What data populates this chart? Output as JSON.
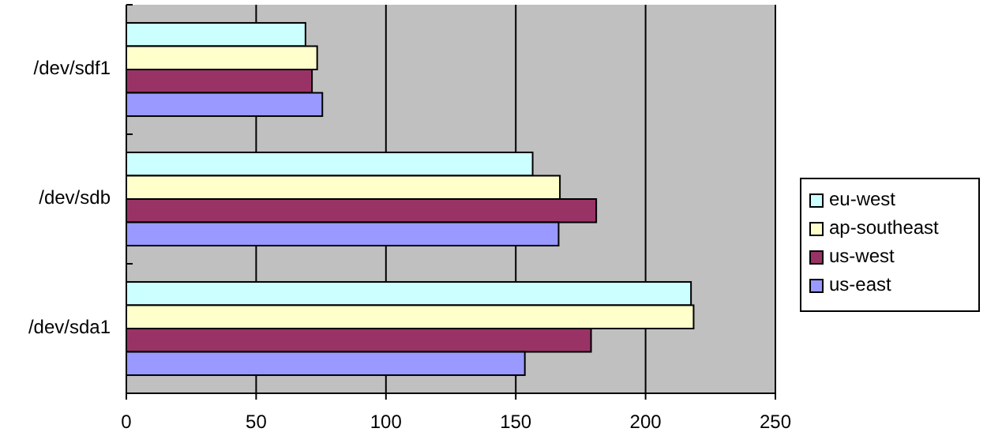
{
  "chart_data": {
    "type": "bar",
    "orientation": "horizontal",
    "categories": [
      "/dev/sdf1",
      "/dev/sdb",
      "/dev/sda1"
    ],
    "series": [
      {
        "name": "eu-west",
        "color": "#ccffff",
        "values": [
          69,
          156.5,
          217.5
        ]
      },
      {
        "name": "ap-southeast",
        "color": "#ffffcc",
        "values": [
          73.5,
          167,
          218.5
        ]
      },
      {
        "name": "us-west",
        "color": "#993366",
        "values": [
          71.5,
          181,
          179
        ]
      },
      {
        "name": "us-east",
        "color": "#9999ff",
        "values": [
          75.5,
          166.5,
          153.5
        ]
      }
    ],
    "xlim": [
      0,
      250
    ],
    "xticks": [
      0,
      50,
      100,
      150,
      200,
      250
    ],
    "grid": "x",
    "legend": "right"
  }
}
